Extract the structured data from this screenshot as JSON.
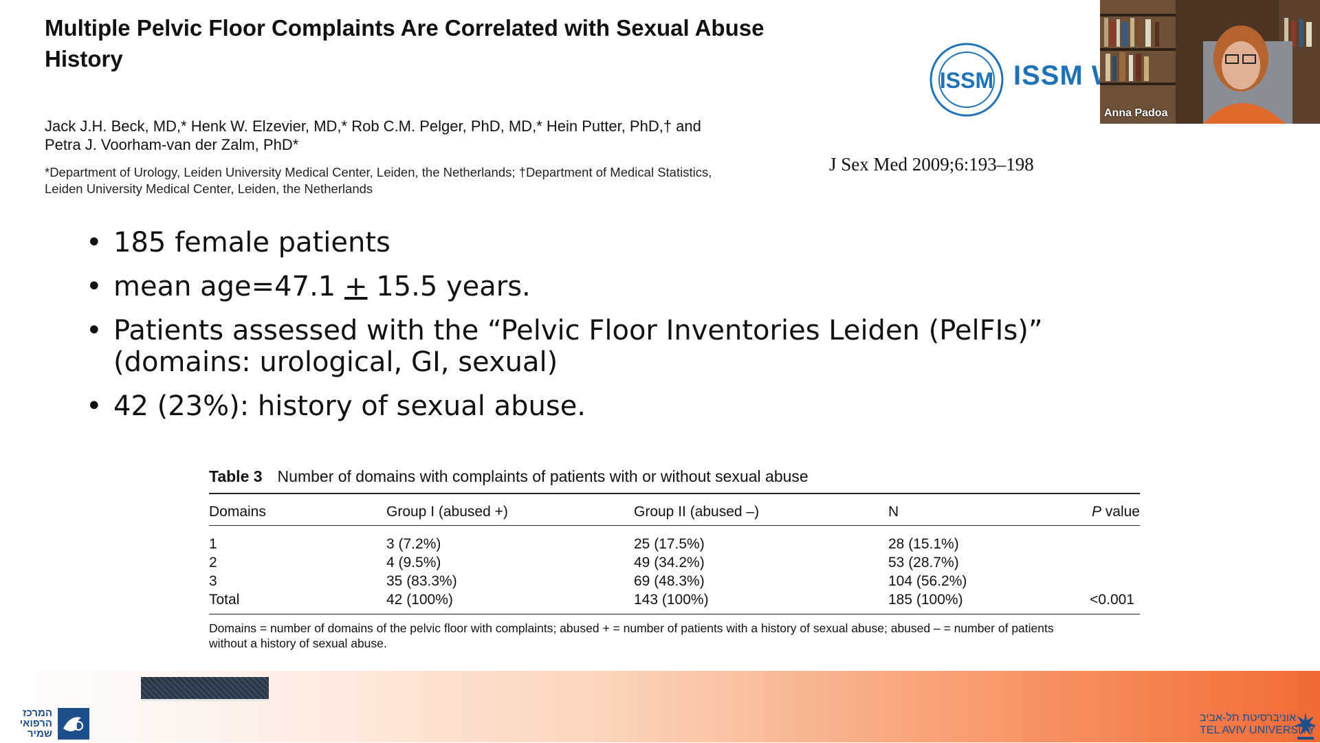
{
  "slide": {
    "title": "Multiple Pelvic Floor Complaints Are Correlated with Sexual Abuse History",
    "authors_line1": "Jack J.H. Beck, MD,* Henk W. Elzevier, MD,* Rob C.M. Pelger, PhD, MD,* Hein Putter, PhD,† and",
    "authors_line2": "Petra J. Voorham-van der Zalm, PhD*",
    "affiliation_line1": "*Department of Urology, Leiden University Medical Center, Leiden, the Netherlands; †Department of Medical Statistics,",
    "affiliation_line2": "Leiden University Medical Center, Leiden, the Netherlands",
    "citation": "J Sex Med 2009;6:193–198",
    "bullets": [
      {
        "text_before": "185 female patients",
        "underlined": "",
        "text_after": ""
      },
      {
        "text_before": "mean age=47.1 ",
        "underlined": "+",
        "text_after": " 15.5 years."
      },
      {
        "text_before": "Patients assessed with the “Pelvic Floor Inventories Leiden (PelFIs)” (domains: urological, GI, sexual)",
        "underlined": "",
        "text_after": ""
      },
      {
        "text_before": "42 (23%): history of sexual abuse.",
        "underlined": "",
        "text_after": ""
      }
    ],
    "bullet_glyph": "•"
  },
  "logo": {
    "wordmark": "ISSM W",
    "seal_text": "ISSM",
    "brand_color": "#1e73b8"
  },
  "webcam": {
    "participant_name": "Anna Padoa"
  },
  "table": {
    "number": "Table 3",
    "caption": "Number of domains with complaints of patients with or without sexual abuse",
    "headers": {
      "domains": "Domains",
      "group1": "Group I (abused +)",
      "group2": "Group II (abused –)",
      "n": "N",
      "p_italic": "P",
      "p_rest": " value"
    },
    "rows": [
      {
        "domain": "1",
        "g1": "3 (7.2%)",
        "g2": "25 (17.5%)",
        "n": "28 (15.1%)",
        "p": ""
      },
      {
        "domain": "2",
        "g1": "4 (9.5%)",
        "g2": "49 (34.2%)",
        "n": "53 (28.7%)",
        "p": ""
      },
      {
        "domain": "3",
        "g1": "35 (83.3%)",
        "g2": "69 (48.3%)",
        "n": "104 (56.2%)",
        "p": ""
      },
      {
        "domain": "Total",
        "g1": "42 (100%)",
        "g2": "143 (100%)",
        "n": "185 (100%)",
        "p": "<0.001"
      }
    ],
    "note_line1": "Domains = number of domains of the pelvic floor with complaints; abused + = number of patients with a history of sexual abuse; abused – = number of patients",
    "note_line2": "without a history of sexual abuse."
  },
  "footer": {
    "sheba_text": "המרכז הרפואי שמיר",
    "tau_text_line1": "אוניברסיטת תל-אביב",
    "tau_text_line2": "TEL AVIV UNIVERSITY",
    "accent_color": "#f26a36"
  }
}
